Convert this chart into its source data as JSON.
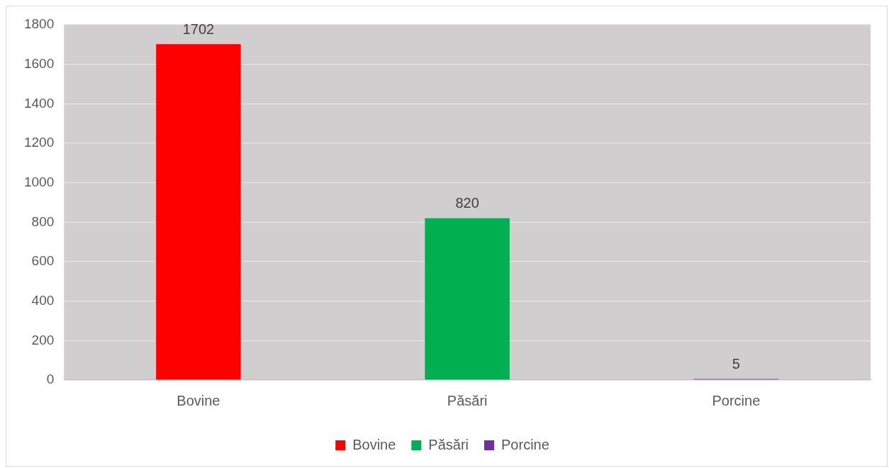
{
  "chart_data": {
    "type": "bar",
    "categories": [
      "Bovine",
      "Păsări",
      "Porcine"
    ],
    "series": [
      {
        "name": "Bovine",
        "color": "#ff0000",
        "values": [
          1702,
          null,
          null
        ]
      },
      {
        "name": "Păsări",
        "color": "#00b050",
        "values": [
          null,
          820,
          null
        ]
      },
      {
        "name": "Porcine",
        "color": "#7030a0",
        "values": [
          null,
          null,
          5
        ]
      }
    ],
    "ylim": [
      0,
      1800
    ],
    "yticks": [
      0,
      200,
      400,
      600,
      800,
      1000,
      1200,
      1400,
      1600,
      1800
    ],
    "grid": "y",
    "legend": "bottom",
    "data_labels": true
  }
}
